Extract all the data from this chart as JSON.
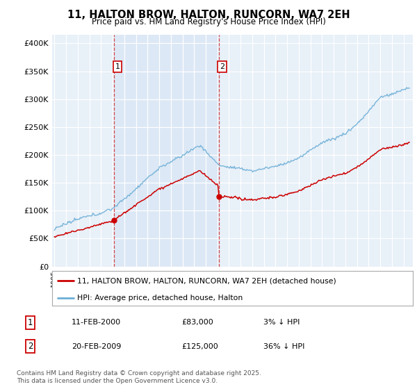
{
  "title": "11, HALTON BROW, HALTON, RUNCORN, WA7 2EH",
  "subtitle": "Price paid vs. HM Land Registry's House Price Index (HPI)",
  "ylabel_ticks": [
    "£0",
    "£50K",
    "£100K",
    "£150K",
    "£200K",
    "£250K",
    "£300K",
    "£350K",
    "£400K"
  ],
  "ytick_values": [
    0,
    50000,
    100000,
    150000,
    200000,
    250000,
    300000,
    350000,
    400000
  ],
  "ylim": [
    0,
    415000
  ],
  "xlim_start": 1994.8,
  "xlim_end": 2025.8,
  "hpi_color": "#6baed6",
  "price_color": "#cc0000",
  "shade_color": "#dce8f5",
  "marker1_date": 2000.12,
  "marker2_date": 2009.12,
  "marker1_price": 83000,
  "marker2_price": 125000,
  "marker1_label": "1",
  "marker2_label": "2",
  "legend_line1": "11, HALTON BROW, HALTON, RUNCORN, WA7 2EH (detached house)",
  "legend_line2": "HPI: Average price, detached house, Halton",
  "footnote": "Contains HM Land Registry data © Crown copyright and database right 2025.\nThis data is licensed under the Open Government Licence v3.0.",
  "background_color": "#ffffff",
  "plot_bg_color": "#e8f0f8"
}
